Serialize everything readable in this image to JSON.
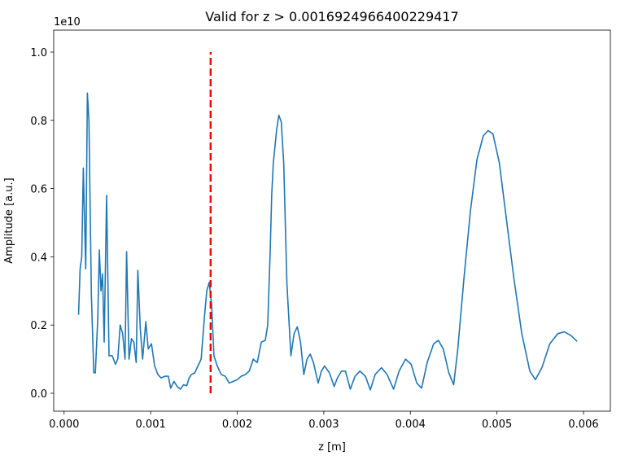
{
  "chart_data": {
    "type": "line",
    "title": "Valid for z > 0.0016924966400229417",
    "x_label": "z [m]",
    "y_label": "Amplitude [a.u.]",
    "y_offset_label": "1e10",
    "xlim": [
      -0.00012,
      0.00631
    ],
    "ylim": [
      -0.0525,
      1.0644
    ],
    "xticks": [
      {
        "value": 0,
        "label": "0.000"
      },
      {
        "value": 0.001,
        "label": "0.001"
      },
      {
        "value": 0.002,
        "label": "0.002"
      },
      {
        "value": 0.003,
        "label": "0.003"
      },
      {
        "value": 0.004,
        "label": "0.004"
      },
      {
        "value": 0.005,
        "label": "0.005"
      },
      {
        "value": 0.006,
        "label": "0.006"
      }
    ],
    "yticks": [
      {
        "value": 0,
        "label": "0.0"
      },
      0.2,
      0.4,
      0.6,
      0.8,
      {
        "value": 1,
        "label": "1.0"
      }
    ],
    "x": [
      0.000167,
      0.000185,
      0.000204,
      0.000222,
      0.00025,
      0.000269,
      0.000287,
      0.000315,
      0.000343,
      0.000361,
      0.000389,
      0.000407,
      0.000426,
      0.000444,
      0.000463,
      0.000491,
      0.000519,
      0.000556,
      0.000593,
      0.00062,
      0.000648,
      0.000676,
      0.000704,
      0.000722,
      0.00075,
      0.000778,
      0.000806,
      0.000833,
      0.000852,
      0.00088,
      0.000907,
      0.000944,
      0.000972,
      0.001009,
      0.001046,
      0.001083,
      0.00112,
      0.001167,
      0.001204,
      0.001231,
      0.001269,
      0.001306,
      0.001343,
      0.00138,
      0.001417,
      0.001444,
      0.001472,
      0.001509,
      0.001546,
      0.001583,
      0.00162,
      0.001648,
      0.001676,
      0.001704,
      0.001731,
      0.001769,
      0.001815,
      0.001861,
      0.001907,
      0.001954,
      0.002,
      0.002046,
      0.002093,
      0.002139,
      0.002185,
      0.002231,
      0.002278,
      0.002324,
      0.002352,
      0.00238,
      0.002398,
      0.002417,
      0.002454,
      0.002481,
      0.002509,
      0.002537,
      0.002574,
      0.00262,
      0.002657,
      0.002694,
      0.002731,
      0.002769,
      0.002806,
      0.002843,
      0.00288,
      0.002935,
      0.002972,
      0.003009,
      0.003065,
      0.00312,
      0.003157,
      0.003204,
      0.00325,
      0.003306,
      0.003361,
      0.003417,
      0.003481,
      0.003537,
      0.003593,
      0.003667,
      0.003731,
      0.003806,
      0.00387,
      0.003944,
      0.004009,
      0.004074,
      0.00413,
      0.004194,
      0.004269,
      0.004324,
      0.00438,
      0.004444,
      0.0045,
      0.004546,
      0.00462,
      0.004694,
      0.004769,
      0.004843,
      0.004898,
      0.004954,
      0.005028,
      0.005102,
      0.005194,
      0.005287,
      0.00538,
      0.005444,
      0.005519,
      0.005611,
      0.005704,
      0.005778,
      0.005852,
      0.005926
    ],
    "series": [
      {
        "color": "#1f77b4",
        "values": [
          0.23,
          0.365,
          0.4,
          0.66,
          0.365,
          0.88,
          0.8,
          0.29,
          0.06,
          0.06,
          0.22,
          0.42,
          0.3,
          0.35,
          0.15,
          0.58,
          0.11,
          0.11,
          0.085,
          0.1,
          0.2,
          0.175,
          0.1,
          0.415,
          0.1,
          0.16,
          0.15,
          0.09,
          0.36,
          0.19,
          0.1,
          0.21,
          0.13,
          0.145,
          0.08,
          0.055,
          0.045,
          0.05,
          0.05,
          0.015,
          0.035,
          0.02,
          0.012,
          0.025,
          0.022,
          0.045,
          0.055,
          0.06,
          0.08,
          0.1,
          0.22,
          0.3,
          0.325,
          0.26,
          0.11,
          0.08,
          0.055,
          0.05,
          0.03,
          0.035,
          0.04,
          0.05,
          0.055,
          0.065,
          0.1,
          0.09,
          0.15,
          0.155,
          0.2,
          0.41,
          0.58,
          0.675,
          0.77,
          0.815,
          0.795,
          0.675,
          0.32,
          0.11,
          0.175,
          0.195,
          0.15,
          0.055,
          0.1,
          0.115,
          0.09,
          0.03,
          0.065,
          0.08,
          0.06,
          0.02,
          0.045,
          0.065,
          0.065,
          0.012,
          0.05,
          0.065,
          0.05,
          0.01,
          0.055,
          0.075,
          0.055,
          0.012,
          0.065,
          0.1,
          0.085,
          0.03,
          0.015,
          0.09,
          0.145,
          0.155,
          0.13,
          0.06,
          0.025,
          0.125,
          0.34,
          0.535,
          0.685,
          0.755,
          0.77,
          0.76,
          0.675,
          0.525,
          0.34,
          0.175,
          0.065,
          0.04,
          0.075,
          0.145,
          0.175,
          0.18,
          0.17,
          0.152
        ]
      }
    ],
    "vline": {
      "x": 0.0016924966400229417,
      "ymin": 0,
      "ymax": 1,
      "color": "#ff0000",
      "style": "dashed"
    },
    "grid": false
  }
}
